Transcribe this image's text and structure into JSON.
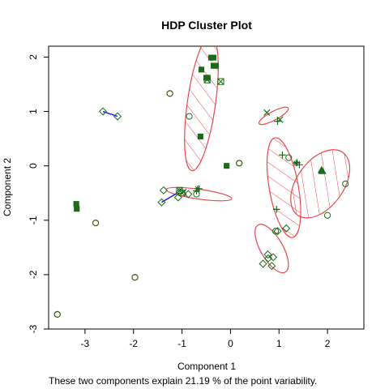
{
  "chart_data": {
    "type": "scatter",
    "title": "HDP Cluster Plot",
    "xlabel": "Component 1",
    "ylabel": "Component 2",
    "subtitle": "These two components explain 21.19 % of the point variability.",
    "xlim": [
      -3.75,
      2.75
    ],
    "ylim": [
      -3.0,
      2.2
    ],
    "xticks": [
      -3,
      -2,
      -1,
      0,
      1,
      2
    ],
    "yticks": [
      -3,
      -2,
      -1,
      0,
      1,
      2
    ],
    "grid": false,
    "colors": {
      "ellipse": "#e8474d",
      "points": "#1a6b1a",
      "link": "#1a1aff",
      "axis": "#000000"
    },
    "ellipses": [
      {
        "cx": -3.57,
        "cy": -2.73,
        "rx": 0.06,
        "ry": 0.05,
        "angle": 0,
        "shaded": false
      },
      {
        "cx": -2.78,
        "cy": -1.05,
        "rx": 0.06,
        "ry": 0.05,
        "angle": 0,
        "shaded": false
      },
      {
        "cx": -1.97,
        "cy": -2.05,
        "rx": 0.06,
        "ry": 0.05,
        "angle": 0,
        "shaded": false
      },
      {
        "cx": -1.25,
        "cy": 1.33,
        "rx": 0.06,
        "ry": 0.05,
        "angle": 0,
        "shaded": false
      },
      {
        "cx": 0.18,
        "cy": 0.05,
        "rx": 0.06,
        "ry": 0.05,
        "angle": 0,
        "shaded": false
      },
      {
        "cx": -0.65,
        "cy": -0.52,
        "rx": 0.68,
        "ry": 0.09,
        "angle": 8,
        "shaded": false
      },
      {
        "cx": -0.6,
        "cy": 1.15,
        "rx": 0.29,
        "ry": 1.25,
        "angle": 8,
        "shaded": true
      },
      {
        "cx": 0.89,
        "cy": 0.92,
        "rx": 0.34,
        "ry": 0.08,
        "angle": -28,
        "shaded": false
      },
      {
        "cx": 1.1,
        "cy": -0.4,
        "rx": 0.3,
        "ry": 0.93,
        "angle": -10,
        "shaded": true
      },
      {
        "cx": 1.85,
        "cy": -0.33,
        "rx": 0.48,
        "ry": 0.71,
        "angle": 36,
        "shaded": true
      },
      {
        "cx": 0.85,
        "cy": -1.52,
        "rx": 0.23,
        "ry": 0.5,
        "angle": -30,
        "shaded": false
      }
    ],
    "links": [
      {
        "x1": -2.63,
        "y1": 1.0,
        "x2": -2.33,
        "y2": 0.91
      },
      {
        "x1": -1.42,
        "y1": -0.67,
        "x2": -1.1,
        "y2": -0.5
      }
    ],
    "series": [
      {
        "shape": "circle",
        "points": [
          [
            -3.57,
            -2.73
          ],
          [
            -2.78,
            -1.05
          ],
          [
            -1.97,
            -2.05
          ],
          [
            -1.25,
            1.33
          ],
          [
            0.18,
            0.05
          ],
          [
            -0.85,
            0.91
          ],
          [
            -0.7,
            -0.52
          ],
          [
            1.2,
            0.15
          ],
          [
            2.0,
            -0.91
          ],
          [
            2.37,
            -0.33
          ],
          [
            0.93,
            -1.2
          ]
        ]
      },
      {
        "shape": "square",
        "points": [
          [
            -3.18,
            -0.7
          ],
          [
            -3.17,
            -0.79
          ],
          [
            -0.35,
            1.99
          ],
          [
            -0.4,
            1.99
          ],
          [
            -0.5,
            1.62
          ],
          [
            -0.47,
            1.62
          ],
          [
            -0.3,
            1.84
          ],
          [
            -0.35,
            1.84
          ],
          [
            -0.6,
            1.77
          ],
          [
            -0.08,
            0.0
          ],
          [
            -0.62,
            0.54
          ]
        ]
      },
      {
        "shape": "box-x",
        "points": [
          [
            -0.48,
            1.58
          ],
          [
            -0.2,
            1.55
          ],
          [
            -1.0,
            -0.5
          ],
          [
            -1.05,
            -0.45
          ]
        ]
      },
      {
        "shape": "diamond",
        "points": [
          [
            -2.63,
            1.0
          ],
          [
            -2.33,
            0.91
          ],
          [
            -1.42,
            -0.67
          ],
          [
            -1.08,
            -0.58
          ],
          [
            -0.87,
            -0.52
          ],
          [
            -1.38,
            -0.45
          ],
          [
            -1.05,
            -0.48
          ],
          [
            1.15,
            -1.15
          ],
          [
            0.97,
            -1.2
          ],
          [
            0.67,
            -1.8
          ],
          [
            0.77,
            -1.63
          ],
          [
            0.88,
            -1.68
          ],
          [
            0.85,
            -1.84
          ],
          [
            0.78,
            -1.7
          ]
        ]
      },
      {
        "shape": "x",
        "points": [
          [
            -0.97,
            -0.48
          ],
          [
            0.75,
            0.98
          ],
          [
            1.02,
            0.85
          ]
        ]
      },
      {
        "shape": "plus",
        "points": [
          [
            -0.65,
            -0.42
          ],
          [
            -0.7,
            -0.46
          ],
          [
            0.97,
            0.82
          ],
          [
            1.37,
            0.06
          ],
          [
            1.42,
            0.02
          ],
          [
            0.95,
            -0.8
          ],
          [
            1.07,
            0.2
          ]
        ]
      },
      {
        "shape": "star",
        "points": [
          [
            -0.68,
            -0.42
          ],
          [
            1.35,
            0.05
          ]
        ]
      },
      {
        "shape": "triangle",
        "points": [
          [
            1.88,
            -0.08
          ],
          [
            1.89,
            -0.1
          ]
        ]
      }
    ]
  }
}
